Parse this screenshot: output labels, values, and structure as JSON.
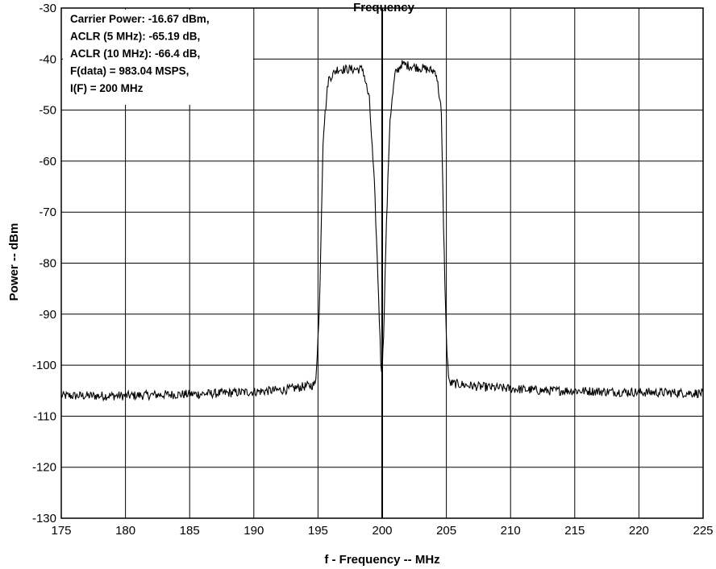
{
  "chart_data": {
    "type": "line",
    "title": "Frequency",
    "xlabel": "f - Frequency -- MHz",
    "ylabel": "Power -- dBm",
    "xlim": [
      175,
      225
    ],
    "ylim": [
      -130,
      -30
    ],
    "xticks": [
      175,
      180,
      185,
      190,
      195,
      200,
      205,
      210,
      215,
      220,
      225
    ],
    "yticks": [
      -30,
      -40,
      -50,
      -60,
      -70,
      -80,
      -90,
      -100,
      -110,
      -120,
      -130
    ],
    "grid": true,
    "annotation": [
      "Carrier Power: -16.67 dBm,",
      "ACLR (5 MHz): -65.19 dB,",
      "ACLR (10 MHz): -66.4 dB,",
      "F(data) = 983.04 MSPS,",
      "I(F) = 200 MHz"
    ],
    "series": [
      {
        "x": [
          175.0,
          177.5,
          180.0,
          182.5,
          185.0,
          187.5,
          190.0,
          192.5,
          194.8,
          195.1,
          195.4,
          195.8,
          196.5,
          197.5,
          198.5,
          199.0,
          199.4,
          199.7,
          199.9,
          200.0,
          200.1,
          200.3,
          200.6,
          201.0,
          201.5,
          202.5,
          203.5,
          204.2,
          204.6,
          204.8,
          205.0,
          205.2,
          207.5,
          210.0,
          212.5,
          215.0,
          217.5,
          220.0,
          222.5,
          225.0
        ],
        "y": [
          -106,
          -106,
          -106,
          -105.8,
          -105.7,
          -105.5,
          -105.2,
          -104.8,
          -103.8,
          -90,
          -55,
          -44,
          -42,
          -42,
          -42,
          -48,
          -65,
          -85,
          -100,
          -101,
          -95,
          -75,
          -52,
          -43,
          -41,
          -41.5,
          -42,
          -42.5,
          -50,
          -75,
          -95,
          -103.5,
          -104.2,
          -104.6,
          -105,
          -105,
          -105.2,
          -105.3,
          -105.4,
          -105.5
        ]
      }
    ]
  }
}
